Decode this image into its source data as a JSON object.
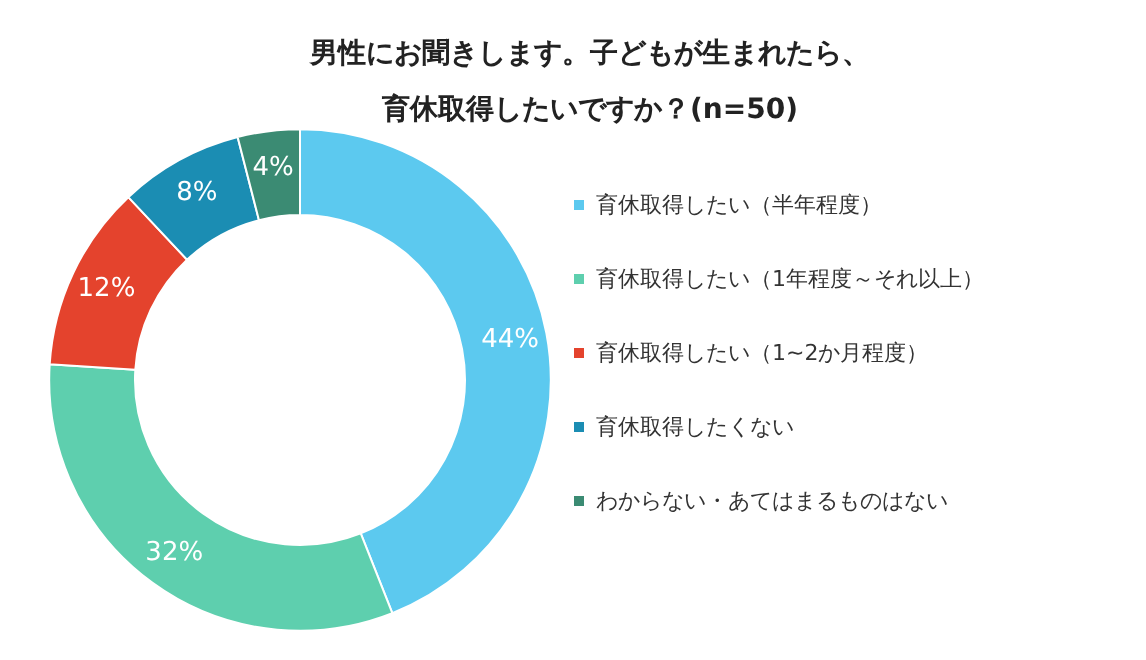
{
  "chart_data": {
    "type": "donut",
    "title": "男性にお聞きします。子どもが生まれたら、育休取得したいですか？(n=50)",
    "categories": [
      "育休取得したい（半年程度）",
      "育休取得したい（1年程度～それ以上）",
      "育休取得したい（1~2か月程度）",
      "育休取得したくない",
      "わからない・あてはまるものはない"
    ],
    "values": [
      44,
      32,
      12,
      8,
      4
    ],
    "colors": [
      "#5cc9ef",
      "#5ecfae",
      "#e4432d",
      "#1b8db3",
      "#3b8b73"
    ],
    "value_labels": [
      "44%",
      "32%",
      "12%",
      "8%",
      "4%"
    ],
    "legend": "right"
  }
}
